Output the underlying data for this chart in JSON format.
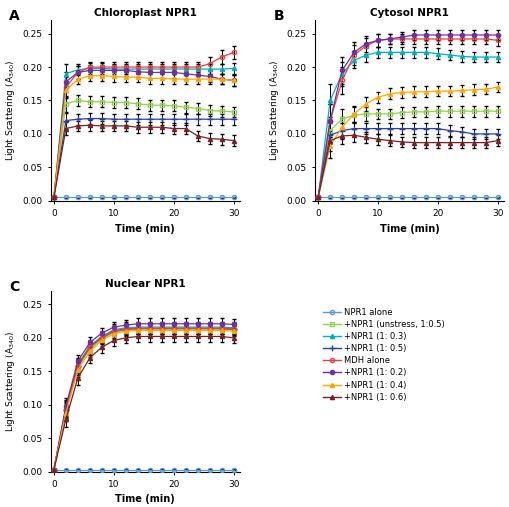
{
  "time_points": [
    0,
    2,
    4,
    6,
    8,
    10,
    12,
    14,
    16,
    18,
    20,
    22,
    24,
    26,
    28,
    30
  ],
  "titles": [
    "Chloroplast NPR1",
    "Cytosol NPR1",
    "Nuclear NPR1"
  ],
  "ylabel": "Light Scattering (A$_{340}$)",
  "xlabel": "Time (min)",
  "ylim": [
    0,
    0.27
  ],
  "yticks": [
    0.0,
    0.05,
    0.1,
    0.15,
    0.2,
    0.25
  ],
  "xticks": [
    0,
    10,
    20,
    30
  ],
  "series_colors": [
    "#5b9bd5",
    "#92d050",
    "#00b0b8",
    "#2e4099",
    "#e84040",
    "#7030a0",
    "#ffa500",
    "#7b2020"
  ],
  "series_markers": [
    "o",
    "s",
    "^",
    "+",
    "o",
    "o",
    "^",
    "^"
  ],
  "series_markersize": [
    3,
    3,
    3,
    5,
    3,
    3,
    3,
    3
  ],
  "series_filled": [
    false,
    false,
    true,
    false,
    false,
    true,
    true,
    true
  ],
  "legend_labels": [
    "NPR1 alone",
    "+NPR1 (unstress, 1:0.5)",
    "+NPR1 (1: 0.3)",
    "+NPR1 (1: 0.5)",
    "MDH alone",
    "+NPR1 (1: 0.2)",
    "+NPR1 (1: 0.4)",
    "+NPR1 (1: 0.6)"
  ],
  "panel_A": {
    "NPR1_alone": [
      0.005,
      0.005,
      0.005,
      0.005,
      0.005,
      0.005,
      0.005,
      0.005,
      0.005,
      0.005,
      0.005,
      0.005,
      0.005,
      0.005,
      0.005,
      0.005
    ],
    "unstress_0_5": [
      0.005,
      0.145,
      0.15,
      0.148,
      0.148,
      0.147,
      0.147,
      0.145,
      0.143,
      0.143,
      0.142,
      0.14,
      0.138,
      0.135,
      0.134,
      0.133
    ],
    "NPR1_0_3": [
      0.005,
      0.19,
      0.196,
      0.198,
      0.198,
      0.197,
      0.197,
      0.197,
      0.197,
      0.197,
      0.197,
      0.197,
      0.197,
      0.197,
      0.197,
      0.198
    ],
    "NPR1_0_5": [
      0.005,
      0.12,
      0.122,
      0.123,
      0.123,
      0.122,
      0.122,
      0.122,
      0.122,
      0.122,
      0.122,
      0.122,
      0.122,
      0.122,
      0.122,
      0.122
    ],
    "MDH_alone": [
      0.005,
      0.17,
      0.192,
      0.2,
      0.2,
      0.2,
      0.2,
      0.2,
      0.2,
      0.2,
      0.2,
      0.2,
      0.2,
      0.205,
      0.215,
      0.222
    ],
    "NPR1_0_2": [
      0.005,
      0.178,
      0.192,
      0.195,
      0.195,
      0.195,
      0.195,
      0.193,
      0.192,
      0.192,
      0.192,
      0.19,
      0.188,
      0.186,
      0.182,
      0.18
    ],
    "NPR1_0_4": [
      0.005,
      0.165,
      0.182,
      0.187,
      0.187,
      0.186,
      0.185,
      0.185,
      0.183,
      0.183,
      0.182,
      0.182,
      0.182,
      0.182,
      0.182,
      0.18
    ],
    "NPR1_0_6": [
      0.005,
      0.108,
      0.112,
      0.113,
      0.112,
      0.112,
      0.112,
      0.11,
      0.11,
      0.11,
      0.108,
      0.108,
      0.097,
      0.093,
      0.092,
      0.09
    ]
  },
  "panel_A_err": {
    "NPR1_alone": [
      0.001,
      0.001,
      0.001,
      0.001,
      0.001,
      0.001,
      0.001,
      0.001,
      0.001,
      0.001,
      0.001,
      0.001,
      0.001,
      0.001,
      0.001,
      0.001
    ],
    "unstress_0_5": [
      0.001,
      0.012,
      0.008,
      0.008,
      0.008,
      0.008,
      0.008,
      0.008,
      0.008,
      0.008,
      0.008,
      0.008,
      0.008,
      0.008,
      0.008,
      0.008
    ],
    "NPR1_0_3": [
      0.001,
      0.015,
      0.008,
      0.008,
      0.008,
      0.008,
      0.008,
      0.008,
      0.008,
      0.008,
      0.008,
      0.008,
      0.008,
      0.008,
      0.008,
      0.008
    ],
    "NPR1_0_5": [
      0.001,
      0.012,
      0.008,
      0.008,
      0.008,
      0.008,
      0.008,
      0.008,
      0.008,
      0.008,
      0.008,
      0.008,
      0.008,
      0.008,
      0.008,
      0.008
    ],
    "MDH_alone": [
      0.001,
      0.015,
      0.01,
      0.008,
      0.008,
      0.008,
      0.008,
      0.008,
      0.008,
      0.008,
      0.008,
      0.008,
      0.008,
      0.01,
      0.01,
      0.01
    ],
    "NPR1_0_2": [
      0.001,
      0.015,
      0.01,
      0.008,
      0.008,
      0.008,
      0.008,
      0.008,
      0.008,
      0.008,
      0.008,
      0.008,
      0.008,
      0.008,
      0.008,
      0.008
    ],
    "NPR1_0_4": [
      0.001,
      0.012,
      0.008,
      0.008,
      0.008,
      0.008,
      0.008,
      0.008,
      0.008,
      0.008,
      0.008,
      0.008,
      0.008,
      0.008,
      0.008,
      0.008
    ],
    "NPR1_0_6": [
      0.001,
      0.01,
      0.008,
      0.008,
      0.008,
      0.008,
      0.008,
      0.008,
      0.008,
      0.008,
      0.008,
      0.008,
      0.008,
      0.008,
      0.008,
      0.008
    ]
  },
  "panel_B": {
    "NPR1_alone": [
      0.005,
      0.005,
      0.005,
      0.005,
      0.005,
      0.005,
      0.005,
      0.005,
      0.005,
      0.005,
      0.005,
      0.005,
      0.005,
      0.005,
      0.005,
      0.005
    ],
    "unstress_0_5": [
      0.005,
      0.105,
      0.122,
      0.128,
      0.13,
      0.13,
      0.13,
      0.132,
      0.133,
      0.133,
      0.134,
      0.134,
      0.134,
      0.134,
      0.134,
      0.134
    ],
    "NPR1_0_3": [
      0.005,
      0.15,
      0.19,
      0.21,
      0.218,
      0.222,
      0.222,
      0.222,
      0.222,
      0.222,
      0.22,
      0.218,
      0.216,
      0.215,
      0.215,
      0.215
    ],
    "NPR1_0_5": [
      0.005,
      0.098,
      0.105,
      0.108,
      0.108,
      0.108,
      0.108,
      0.108,
      0.108,
      0.108,
      0.108,
      0.105,
      0.103,
      0.1,
      0.1,
      0.1
    ],
    "MDH_alone": [
      0.005,
      0.12,
      0.18,
      0.218,
      0.232,
      0.24,
      0.242,
      0.242,
      0.242,
      0.242,
      0.242,
      0.242,
      0.242,
      0.242,
      0.242,
      0.24
    ],
    "NPR1_0_2": [
      0.005,
      0.12,
      0.195,
      0.222,
      0.235,
      0.24,
      0.242,
      0.245,
      0.248,
      0.248,
      0.248,
      0.248,
      0.248,
      0.248,
      0.248,
      0.248
    ],
    "NPR1_0_4": [
      0.005,
      0.082,
      0.11,
      0.13,
      0.145,
      0.155,
      0.16,
      0.162,
      0.163,
      0.163,
      0.164,
      0.164,
      0.165,
      0.166,
      0.167,
      0.17
    ],
    "NPR1_0_6": [
      0.005,
      0.09,
      0.097,
      0.098,
      0.095,
      0.092,
      0.09,
      0.088,
      0.087,
      0.087,
      0.087,
      0.087,
      0.087,
      0.087,
      0.087,
      0.09
    ]
  },
  "panel_B_err": {
    "NPR1_alone": [
      0.001,
      0.001,
      0.001,
      0.001,
      0.001,
      0.001,
      0.001,
      0.001,
      0.001,
      0.001,
      0.001,
      0.001,
      0.001,
      0.001,
      0.001,
      0.001
    ],
    "unstress_0_5": [
      0.001,
      0.02,
      0.015,
      0.012,
      0.01,
      0.008,
      0.008,
      0.008,
      0.008,
      0.008,
      0.008,
      0.008,
      0.008,
      0.008,
      0.008,
      0.008
    ],
    "NPR1_0_3": [
      0.001,
      0.025,
      0.018,
      0.012,
      0.01,
      0.008,
      0.008,
      0.008,
      0.008,
      0.008,
      0.008,
      0.008,
      0.008,
      0.008,
      0.008,
      0.008
    ],
    "NPR1_0_5": [
      0.001,
      0.018,
      0.012,
      0.01,
      0.008,
      0.008,
      0.008,
      0.008,
      0.008,
      0.008,
      0.008,
      0.008,
      0.008,
      0.008,
      0.008,
      0.008
    ],
    "MDH_alone": [
      0.001,
      0.025,
      0.02,
      0.015,
      0.012,
      0.01,
      0.008,
      0.008,
      0.008,
      0.008,
      0.008,
      0.008,
      0.008,
      0.008,
      0.008,
      0.008
    ],
    "NPR1_0_2": [
      0.001,
      0.025,
      0.02,
      0.015,
      0.012,
      0.01,
      0.008,
      0.008,
      0.008,
      0.008,
      0.008,
      0.008,
      0.008,
      0.008,
      0.008,
      0.008
    ],
    "NPR1_0_4": [
      0.001,
      0.018,
      0.015,
      0.012,
      0.01,
      0.008,
      0.008,
      0.008,
      0.008,
      0.008,
      0.008,
      0.008,
      0.008,
      0.008,
      0.008,
      0.008
    ],
    "NPR1_0_6": [
      0.001,
      0.015,
      0.012,
      0.01,
      0.008,
      0.008,
      0.008,
      0.008,
      0.008,
      0.008,
      0.008,
      0.008,
      0.008,
      0.008,
      0.008,
      0.008
    ]
  },
  "panel_C": {
    "NPR1_alone": [
      0.003,
      0.003,
      0.003,
      0.003,
      0.003,
      0.003,
      0.003,
      0.003,
      0.003,
      0.003,
      0.003,
      0.003,
      0.003,
      0.003,
      0.003,
      0.003
    ],
    "unstress_0_5": [
      0.003,
      0.09,
      0.155,
      0.183,
      0.198,
      0.208,
      0.212,
      0.213,
      0.213,
      0.213,
      0.213,
      0.213,
      0.213,
      0.213,
      0.213,
      0.212
    ],
    "NPR1_0_3": [
      0.003,
      0.095,
      0.16,
      0.188,
      0.202,
      0.212,
      0.215,
      0.216,
      0.216,
      0.216,
      0.216,
      0.216,
      0.216,
      0.216,
      0.216,
      0.215
    ],
    "NPR1_0_5": [
      0.003,
      0.092,
      0.158,
      0.186,
      0.2,
      0.21,
      0.213,
      0.214,
      0.214,
      0.214,
      0.214,
      0.214,
      0.214,
      0.214,
      0.214,
      0.213
    ],
    "MDH_alone": [
      0.003,
      0.093,
      0.158,
      0.186,
      0.2,
      0.21,
      0.213,
      0.214,
      0.214,
      0.214,
      0.214,
      0.214,
      0.214,
      0.214,
      0.214,
      0.213
    ],
    "NPR1_0_2": [
      0.003,
      0.098,
      0.165,
      0.193,
      0.207,
      0.216,
      0.219,
      0.221,
      0.221,
      0.221,
      0.221,
      0.221,
      0.221,
      0.221,
      0.221,
      0.22
    ],
    "NPR1_0_4": [
      0.003,
      0.088,
      0.152,
      0.18,
      0.196,
      0.206,
      0.21,
      0.211,
      0.211,
      0.211,
      0.211,
      0.211,
      0.211,
      0.211,
      0.211,
      0.21
    ],
    "NPR1_0_6": [
      0.003,
      0.078,
      0.14,
      0.17,
      0.186,
      0.196,
      0.2,
      0.202,
      0.202,
      0.202,
      0.202,
      0.202,
      0.202,
      0.202,
      0.202,
      0.2
    ]
  },
  "panel_C_err": {
    "NPR1_alone": [
      0.001,
      0.001,
      0.001,
      0.001,
      0.001,
      0.001,
      0.001,
      0.001,
      0.001,
      0.001,
      0.001,
      0.001,
      0.001,
      0.001,
      0.001,
      0.001
    ],
    "unstress_0_5": [
      0.001,
      0.012,
      0.01,
      0.008,
      0.008,
      0.008,
      0.008,
      0.008,
      0.008,
      0.008,
      0.008,
      0.008,
      0.008,
      0.008,
      0.008,
      0.008
    ],
    "NPR1_0_3": [
      0.001,
      0.012,
      0.01,
      0.008,
      0.008,
      0.008,
      0.008,
      0.008,
      0.008,
      0.008,
      0.008,
      0.008,
      0.008,
      0.008,
      0.008,
      0.008
    ],
    "NPR1_0_5": [
      0.001,
      0.012,
      0.01,
      0.008,
      0.008,
      0.008,
      0.008,
      0.008,
      0.008,
      0.008,
      0.008,
      0.008,
      0.008,
      0.008,
      0.008,
      0.008
    ],
    "MDH_alone": [
      0.001,
      0.012,
      0.01,
      0.008,
      0.008,
      0.008,
      0.008,
      0.008,
      0.008,
      0.008,
      0.008,
      0.008,
      0.008,
      0.008,
      0.008,
      0.008
    ],
    "NPR1_0_2": [
      0.001,
      0.012,
      0.01,
      0.008,
      0.008,
      0.008,
      0.008,
      0.008,
      0.008,
      0.008,
      0.008,
      0.008,
      0.008,
      0.008,
      0.008,
      0.008
    ],
    "NPR1_0_4": [
      0.001,
      0.012,
      0.01,
      0.008,
      0.008,
      0.008,
      0.008,
      0.008,
      0.008,
      0.008,
      0.008,
      0.008,
      0.008,
      0.008,
      0.008,
      0.008
    ],
    "NPR1_0_6": [
      0.001,
      0.012,
      0.01,
      0.008,
      0.008,
      0.008,
      0.008,
      0.008,
      0.008,
      0.008,
      0.008,
      0.008,
      0.008,
      0.008,
      0.008,
      0.008
    ]
  },
  "series_keys": [
    "NPR1_alone",
    "unstress_0_5",
    "NPR1_0_3",
    "NPR1_0_5",
    "MDH_alone",
    "NPR1_0_2",
    "NPR1_0_4",
    "NPR1_0_6"
  ],
  "panel_labels": [
    "A",
    "B",
    "C"
  ],
  "background_color": "#ffffff"
}
